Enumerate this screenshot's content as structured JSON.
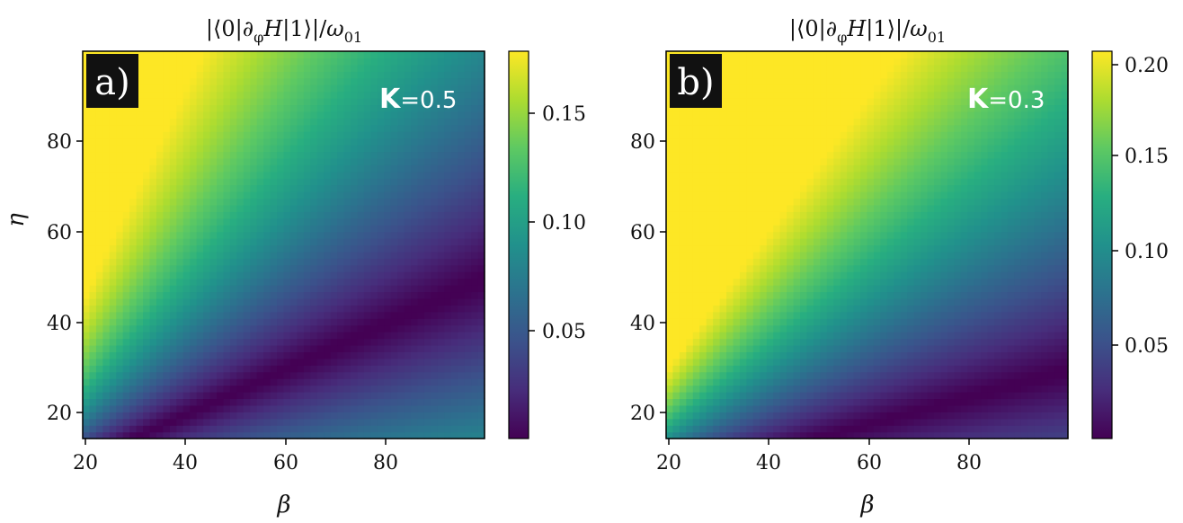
{
  "chart_data": [
    {
      "type": "heatmap",
      "panel_label": "a)",
      "title": "|⟨0|∂φH|1⟩|/ω01",
      "title_parts": {
        "open": "|⟨0|∂",
        "sub_phi": "φ",
        "H": "H",
        "mid": "|1⟩|/",
        "omega": "ω",
        "sub01": "01"
      },
      "xlabel": "β",
      "ylabel": "η",
      "xlim": [
        20,
        100
      ],
      "ylim": [
        15,
        100
      ],
      "x_ticks": [
        20,
        40,
        60,
        80
      ],
      "y_ticks": [
        20,
        40,
        60,
        80
      ],
      "annotation": {
        "symbol": "K",
        "value": "=0.5"
      },
      "colorbar": {
        "min": 0.003,
        "max": 0.18,
        "ticks": [
          0.05,
          0.1,
          0.15
        ],
        "tick_labels": [
          "0.05",
          "0.10",
          "0.15"
        ],
        "colormap": "viridis"
      },
      "model": {
        "K": 0.5,
        "scale": 0.26,
        "vmax": 0.18
      }
    },
    {
      "type": "heatmap",
      "panel_label": "b)",
      "title": "|⟨0|∂φH|1⟩|/ω01",
      "title_parts": {
        "open": "|⟨0|∂",
        "sub_phi": "φ",
        "H": "H",
        "mid": "|1⟩|/",
        "omega": "ω",
        "sub01": "01"
      },
      "xlabel": "β",
      "ylabel": "",
      "xlim": [
        20,
        100
      ],
      "ylim": [
        15,
        100
      ],
      "x_ticks": [
        20,
        40,
        60,
        80
      ],
      "y_ticks": [
        20,
        40,
        60,
        80
      ],
      "annotation": {
        "symbol": "K",
        "value": "=0.3"
      },
      "colorbar": {
        "min": 0.003,
        "max": 0.207,
        "ticks": [
          0.05,
          0.1,
          0.15,
          0.2
        ],
        "tick_labels": [
          "0.05",
          "0.10",
          "0.15",
          "0.20"
        ],
        "colormap": "viridis"
      },
      "model": {
        "K": 0.3,
        "scale": 0.3,
        "vmax": 0.207
      }
    }
  ]
}
